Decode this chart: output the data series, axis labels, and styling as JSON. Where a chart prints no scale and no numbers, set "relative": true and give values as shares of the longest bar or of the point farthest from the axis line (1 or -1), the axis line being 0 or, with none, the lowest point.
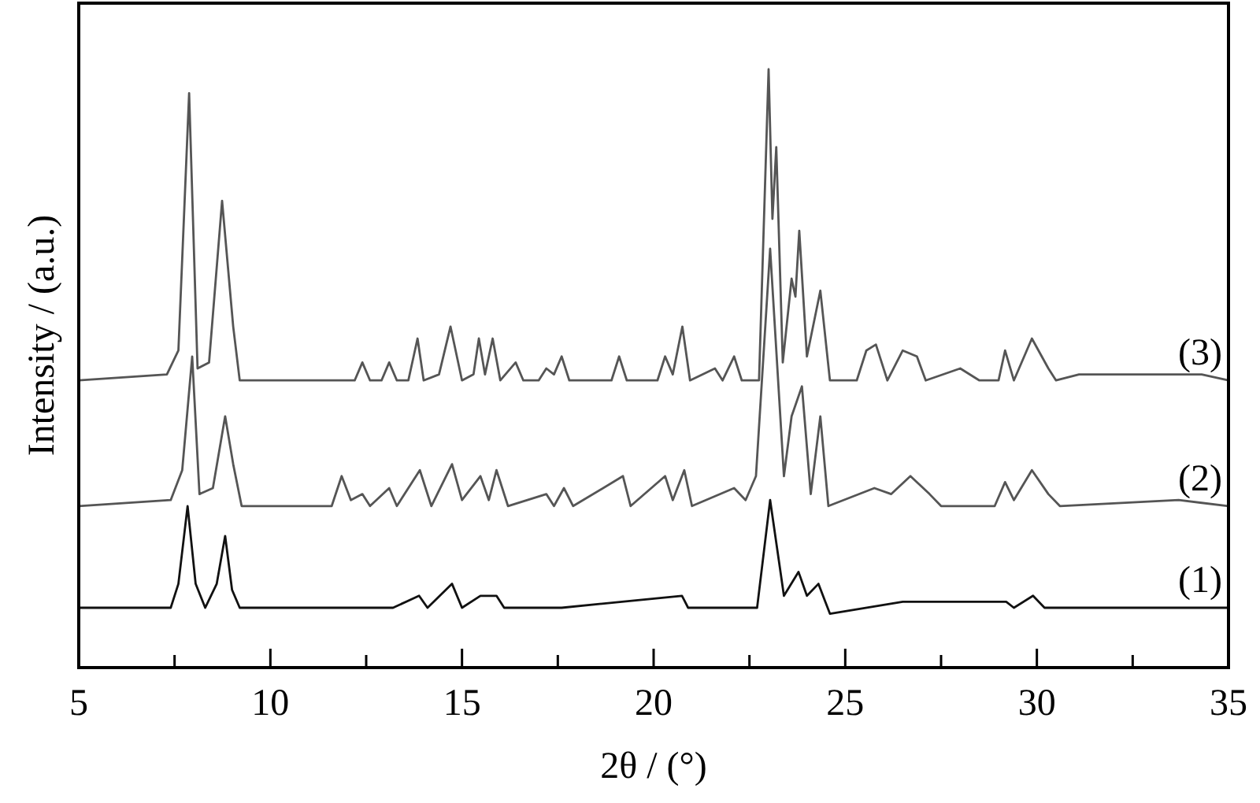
{
  "chart_data": {
    "type": "line",
    "xlabel": "2θ / (°)",
    "ylabel": "Intensity / (a.u.)",
    "relative": true,
    "xlim": [
      5,
      35
    ],
    "xticks": [
      5,
      {
        "value": 7.5,
        "label": null
      },
      10,
      {
        "value": 12.5,
        "label": null
      },
      15,
      {
        "value": 17.5,
        "label": null
      },
      20,
      {
        "value": 22.5,
        "label": null
      },
      25,
      {
        "value": 27.5,
        "label": null
      },
      30,
      {
        "value": 32.5,
        "label": null
      },
      35
    ],
    "grid": false,
    "legend": false,
    "marker": "none",
    "line_style": "solid",
    "series": [
      {
        "name": "(3)",
        "color": "#555555",
        "x": [
          5,
          7.3,
          7.6,
          7.88,
          8.1,
          8.4,
          8.74,
          9.03,
          9.2,
          12.2,
          12.4,
          12.6,
          12.9,
          13.1,
          13.3,
          13.6,
          13.84,
          14,
          14.4,
          14.7,
          15,
          15.3,
          15.44,
          15.6,
          15.8,
          16,
          16.4,
          16.6,
          17,
          17.2,
          17.4,
          17.6,
          17.8,
          18.9,
          19.1,
          19.3,
          20.1,
          20.3,
          20.5,
          20.75,
          20.95,
          21.6,
          21.8,
          22.1,
          22.3,
          22.75,
          23,
          23.1,
          23.2,
          23.37,
          23.6,
          23.7,
          23.8,
          24,
          24.35,
          24.6,
          25.3,
          25.55,
          25.8,
          26.1,
          26.5,
          26.87,
          27.1,
          28,
          28.5,
          29,
          29.17,
          29.4,
          29.87,
          30.3,
          30.5,
          31.1,
          32.6,
          33.36,
          34.3,
          35
        ],
        "values": [
          0.48,
          0.49,
          0.53,
          0.96,
          0.5,
          0.51,
          0.78,
          0.57,
          0.48,
          0.48,
          0.51,
          0.48,
          0.48,
          0.51,
          0.48,
          0.48,
          0.55,
          0.48,
          0.49,
          0.57,
          0.48,
          0.49,
          0.55,
          0.49,
          0.55,
          0.48,
          0.51,
          0.48,
          0.48,
          0.5,
          0.49,
          0.52,
          0.48,
          0.48,
          0.52,
          0.48,
          0.48,
          0.52,
          0.49,
          0.57,
          0.48,
          0.5,
          0.48,
          0.52,
          0.48,
          0.48,
          1,
          0.75,
          0.87,
          0.51,
          0.65,
          0.62,
          0.73,
          0.52,
          0.63,
          0.48,
          0.48,
          0.53,
          0.54,
          0.48,
          0.53,
          0.52,
          0.48,
          0.5,
          0.48,
          0.48,
          0.53,
          0.48,
          0.55,
          0.5,
          0.48,
          0.49,
          0.49,
          0.49,
          0.49,
          0.48
        ]
      },
      {
        "name": "(2)",
        "color": "#555555",
        "x": [
          5,
          7.4,
          7.7,
          7.96,
          8.15,
          8.5,
          8.82,
          9.03,
          9.25,
          11.6,
          11.86,
          12.1,
          12.4,
          12.6,
          13.1,
          13.3,
          13.9,
          14.2,
          14.74,
          15,
          15.48,
          15.7,
          15.9,
          16.2,
          17.2,
          17.4,
          17.66,
          17.9,
          19.2,
          19.4,
          20.3,
          20.5,
          20.8,
          21,
          22.1,
          22.4,
          22.67,
          23.04,
          23.4,
          23.6,
          23.87,
          24.1,
          24.35,
          24.56,
          25.76,
          26.2,
          26.7,
          27.2,
          27.5,
          28.9,
          29.17,
          29.4,
          29.87,
          30.3,
          30.6,
          33.7,
          35
        ],
        "values": [
          0.27,
          0.28,
          0.33,
          0.52,
          0.29,
          0.3,
          0.42,
          0.34,
          0.27,
          0.27,
          0.32,
          0.28,
          0.29,
          0.27,
          0.3,
          0.27,
          0.33,
          0.27,
          0.34,
          0.28,
          0.32,
          0.28,
          0.33,
          0.27,
          0.29,
          0.27,
          0.3,
          0.27,
          0.32,
          0.27,
          0.32,
          0.28,
          0.33,
          0.27,
          0.3,
          0.28,
          0.32,
          0.7,
          0.32,
          0.42,
          0.47,
          0.29,
          0.42,
          0.27,
          0.3,
          0.29,
          0.32,
          0.29,
          0.27,
          0.27,
          0.31,
          0.28,
          0.33,
          0.29,
          0.27,
          0.28,
          0.27
        ]
      },
      {
        "name": "(1)",
        "color": "#111111",
        "x": [
          5,
          7.4,
          7.6,
          7.84,
          8.05,
          8.3,
          8.6,
          8.82,
          9,
          9.2,
          13.2,
          13.88,
          14.1,
          14.74,
          15,
          15.48,
          15.9,
          16.1,
          17.6,
          20.74,
          20.9,
          22.7,
          23.04,
          23.4,
          23.78,
          24,
          24.3,
          24.6,
          26.5,
          29.2,
          29.4,
          29.9,
          30.2,
          35
        ],
        "values": [
          0.1,
          0.1,
          0.14,
          0.27,
          0.14,
          0.1,
          0.14,
          0.22,
          0.13,
          0.1,
          0.1,
          0.12,
          0.1,
          0.14,
          0.1,
          0.12,
          0.12,
          0.1,
          0.1,
          0.12,
          0.1,
          0.1,
          0.28,
          0.12,
          0.16,
          0.12,
          0.14,
          0.09,
          0.11,
          0.11,
          0.1,
          0.12,
          0.1,
          0.1
        ]
      }
    ]
  }
}
